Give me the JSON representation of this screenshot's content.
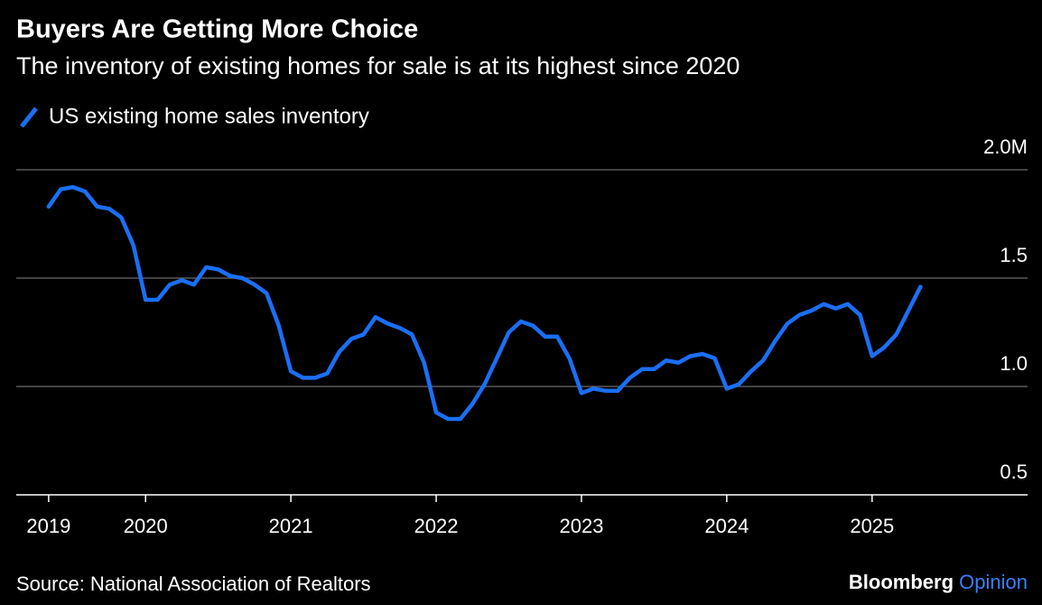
{
  "chart_data": {
    "type": "line",
    "title": "Buyers Are Getting More Choice",
    "subtitle": "The inventory of existing homes for sale is at its highest since 2020",
    "source": "Source: National Association of Realtors",
    "logo_main": "Bloomberg",
    "logo_accent": "Opinion",
    "x": [
      2019.333,
      2019.417,
      2019.5,
      2019.583,
      2019.667,
      2019.75,
      2019.833,
      2019.917,
      2020.0,
      2020.083,
      2020.167,
      2020.25,
      2020.333,
      2020.417,
      2020.5,
      2020.583,
      2020.667,
      2020.75,
      2020.833,
      2020.917,
      2021.0,
      2021.083,
      2021.167,
      2021.25,
      2021.333,
      2021.417,
      2021.5,
      2021.583,
      2021.667,
      2021.75,
      2021.833,
      2021.917,
      2022.0,
      2022.083,
      2022.167,
      2022.25,
      2022.333,
      2022.417,
      2022.5,
      2022.583,
      2022.667,
      2022.75,
      2022.833,
      2022.917,
      2023.0,
      2023.083,
      2023.167,
      2023.25,
      2023.333,
      2023.417,
      2023.5,
      2023.583,
      2023.667,
      2023.75,
      2023.833,
      2023.917,
      2024.0,
      2024.083,
      2024.167,
      2024.25,
      2024.333,
      2024.417,
      2024.5,
      2024.583,
      2024.667,
      2024.75,
      2024.833,
      2024.917,
      2025.0,
      2025.083,
      2025.167,
      2025.25,
      2025.333
    ],
    "series": [
      {
        "name": "US existing home sales inventory",
        "color": "#1a6ff5",
        "values": [
          1.83,
          1.91,
          1.92,
          1.9,
          1.83,
          1.82,
          1.78,
          1.65,
          1.4,
          1.4,
          1.47,
          1.49,
          1.47,
          1.55,
          1.54,
          1.51,
          1.5,
          1.47,
          1.43,
          1.28,
          1.07,
          1.04,
          1.04,
          1.06,
          1.16,
          1.22,
          1.24,
          1.32,
          1.29,
          1.27,
          1.24,
          1.11,
          0.88,
          0.85,
          0.85,
          0.92,
          1.01,
          1.13,
          1.25,
          1.3,
          1.28,
          1.23,
          1.23,
          1.13,
          0.97,
          0.99,
          0.98,
          0.98,
          1.04,
          1.08,
          1.08,
          1.12,
          1.11,
          1.14,
          1.15,
          1.13,
          0.99,
          1.01,
          1.07,
          1.12,
          1.21,
          1.29,
          1.33,
          1.35,
          1.38,
          1.36,
          1.38,
          1.33,
          1.14,
          1.18,
          1.24,
          1.35,
          1.46
        ]
      }
    ],
    "xlim": [
      2019.11,
      2026.07
    ],
    "xticks": [
      {
        "value": 2019.333,
        "label": "2019"
      },
      2020,
      2021,
      2022,
      2023,
      2024,
      2025
    ],
    "ylim": [
      0.5,
      2.0
    ],
    "yticks": [
      0.5,
      {
        "value": 1,
        "label": "1.0"
      },
      1.5,
      {
        "value": 2,
        "label": "2.0M"
      }
    ],
    "grid": true
  }
}
